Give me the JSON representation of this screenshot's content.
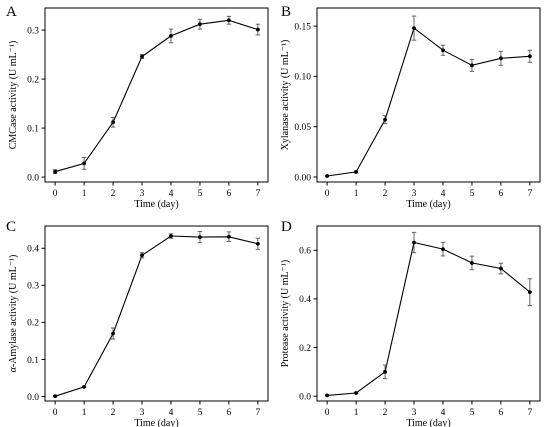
{
  "chart_data": [
    {
      "type": "line",
      "panel_label": "A",
      "x": [
        0,
        1,
        2,
        3,
        4,
        5,
        6,
        7
      ],
      "values": [
        0.011,
        0.028,
        0.112,
        0.246,
        0.288,
        0.312,
        0.32,
        0.301
      ],
      "errors": [
        0.004,
        0.012,
        0.01,
        0.004,
        0.014,
        0.01,
        0.008,
        0.011
      ],
      "xlabel": "Time (day)",
      "ylabel": "CMCase activity (U mL⁻¹)",
      "xlim": [
        -0.35,
        7.35
      ],
      "ylim": [
        -0.01,
        0.345
      ],
      "xticks": [
        "0",
        "1",
        "2",
        "3",
        "4",
        "5",
        "6",
        "7"
      ],
      "yticks": [
        0.0,
        0.1,
        0.2,
        0.3
      ],
      "ytick_labels": [
        "0.0",
        "0.1",
        "0.2",
        "0.3"
      ]
    },
    {
      "type": "line",
      "panel_label": "B",
      "x": [
        0,
        1,
        2,
        3,
        4,
        5,
        6,
        7
      ],
      "values": [
        0.001,
        0.005,
        0.057,
        0.148,
        0.126,
        0.111,
        0.118,
        0.12
      ],
      "errors": [
        0.0005,
        0.001,
        0.004,
        0.012,
        0.005,
        0.006,
        0.007,
        0.006
      ],
      "xlabel": "Time (day)",
      "ylabel": "Xylanase activity (U mL⁻¹)",
      "xlim": [
        -0.35,
        7.35
      ],
      "ylim": [
        -0.005,
        0.168
      ],
      "xticks": [
        "0",
        "1",
        "2",
        "3",
        "4",
        "5",
        "6",
        "7"
      ],
      "yticks": [
        0.0,
        0.05,
        0.1,
        0.15
      ],
      "ytick_labels": [
        "0.00",
        "0.05",
        "0.10",
        "0.15"
      ]
    },
    {
      "type": "line",
      "panel_label": "C",
      "x": [
        0,
        1,
        2,
        3,
        4,
        5,
        6,
        7
      ],
      "values": [
        0.001,
        0.026,
        0.17,
        0.381,
        0.433,
        0.43,
        0.431,
        0.412
      ],
      "errors": [
        0.001,
        0.002,
        0.015,
        0.007,
        0.006,
        0.015,
        0.013,
        0.015
      ],
      "xlabel": "Time (day)",
      "ylabel": "α-Amylase activity (U mL⁻¹)",
      "xlim": [
        -0.35,
        7.35
      ],
      "ylim": [
        -0.012,
        0.46
      ],
      "xticks": [
        "0",
        "1",
        "2",
        "3",
        "4",
        "5",
        "6",
        "7"
      ],
      "yticks": [
        0.0,
        0.1,
        0.2,
        0.3,
        0.4
      ],
      "ytick_labels": [
        "0.0",
        "0.1",
        "0.2",
        "0.3",
        "0.4"
      ]
    },
    {
      "type": "line",
      "panel_label": "D",
      "x": [
        0,
        1,
        2,
        3,
        4,
        5,
        6,
        7
      ],
      "values": [
        0.003,
        0.013,
        0.1,
        0.632,
        0.605,
        0.548,
        0.525,
        0.428
      ],
      "errors": [
        0.002,
        0.003,
        0.028,
        0.042,
        0.028,
        0.028,
        0.022,
        0.055
      ],
      "xlabel": "Time (day)",
      "ylabel": "Protease activity (U mL⁻¹)",
      "xlim": [
        -0.35,
        7.35
      ],
      "ylim": [
        -0.02,
        0.7
      ],
      "xticks": [
        "0",
        "1",
        "2",
        "3",
        "4",
        "5",
        "6",
        "7"
      ],
      "yticks": [
        0.0,
        0.2,
        0.4,
        0.6
      ],
      "ytick_labels": [
        "0.0",
        "0.2",
        "0.4",
        "0.6"
      ]
    }
  ]
}
